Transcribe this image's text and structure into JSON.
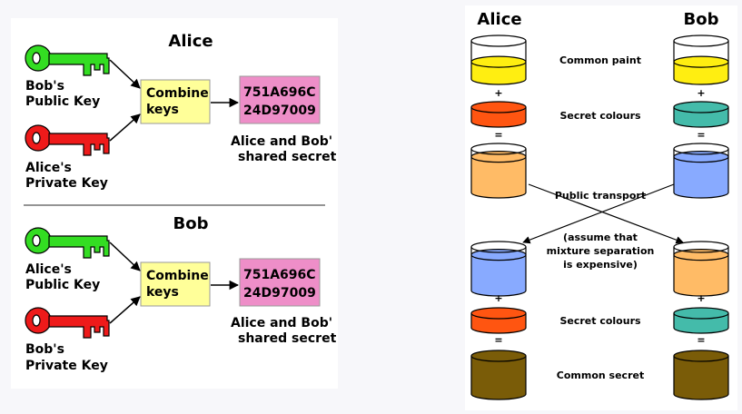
{
  "left_diagram": {
    "alice": {
      "title": "Alice",
      "public_key_line1": "Bob's",
      "public_key_line2": "Public Key",
      "private_key_line1": "Alice's",
      "private_key_line2": "Private Key",
      "combine_line1": "Combine",
      "combine_line2": "keys",
      "secret_line1": "751A696C",
      "secret_line2": "24D97009",
      "caption_line1": "Alice and Bob'",
      "caption_line2": "shared secret"
    },
    "bob": {
      "title": "Bob",
      "public_key_line1": "Alice's",
      "public_key_line2": "Public Key",
      "private_key_line1": "Bob's",
      "private_key_line2": "Private Key",
      "combine_line1": "Combine",
      "combine_line2": "keys",
      "secret_line1": "751A696C",
      "secret_line2": "24D97009",
      "caption_line1": "Alice and Bob'",
      "caption_line2": "shared secret"
    },
    "colors": {
      "public_key": "#33dd22",
      "private_key": "#ee1a1a",
      "combine_box": "#ffff99",
      "secret_box": "#ee8ec8"
    }
  },
  "right_diagram": {
    "alice_title": "Alice",
    "bob_title": "Bob",
    "common_paint": "Common paint",
    "plus": "+",
    "equals": "=",
    "secret_colours": "Secret colours",
    "public_transport": "Public transport",
    "assumption_line1": "(assume that",
    "assumption_line2": "mixture separation",
    "assumption_line3": "is expensive)",
    "common_secret": "Common secret",
    "colors": {
      "common_paint": "#ffee11",
      "alice_secret": "#ff5511",
      "bob_secret": "#44bbaa",
      "alice_mixture": "#ffbb66",
      "bob_mixture": "#88aaff",
      "common_secret": "#7a5c08"
    }
  }
}
